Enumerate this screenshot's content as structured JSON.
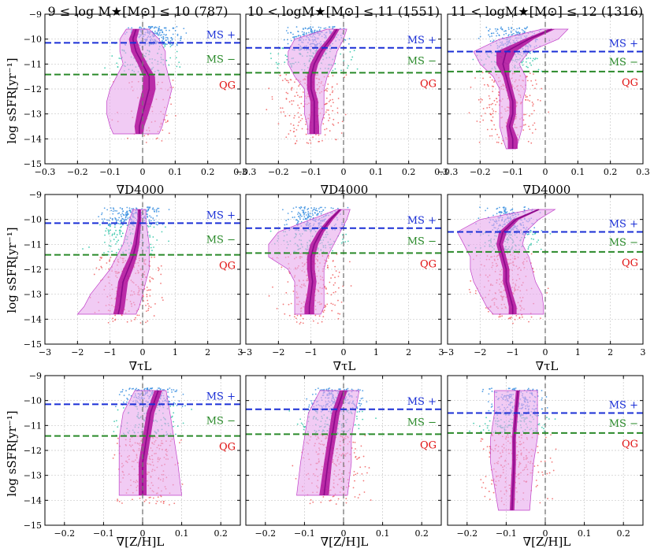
{
  "figure": {
    "column_titles": [
      "9 ≤ log M★[M⊙] ≤ 10 (787)",
      "10 < logM★[M⊙] ≤ 11 (1551)",
      "11 < logM★[M⊙] ≤ 12 (1316)"
    ],
    "ylabel": "log sSFR[yr⁻¹]",
    "row_xlabels": [
      "∇D4000",
      "∇τL",
      "∇[Z/H]L"
    ],
    "region_labels": {
      "ms_plus": "MS +",
      "ms_minus": "MS −",
      "qg": "QG"
    },
    "colors": {
      "ms_plus_line": "#1a2fd6",
      "ms_minus_line": "#2a8a2a",
      "qg_text": "#e01010",
      "ms_plus_points": "#3a8fe0",
      "ms_minus_points": "#2ec4a6",
      "qg_points": "#f06060",
      "band_outer": "#e8a8ec",
      "band_outer_edge": "#c040c8",
      "band_inner": "#b0109a",
      "median": "#8a0a8a"
    },
    "y_ticks": [
      -9,
      -10,
      -11,
      -12,
      -13,
      -14,
      -15
    ]
  },
  "chart_data": [
    {
      "type": "scatter",
      "row": 0,
      "col": 0,
      "xlim": [
        -0.3,
        0.3
      ],
      "ylim": [
        -15,
        -9
      ],
      "xticks": [
        -0.3,
        -0.2,
        -0.1,
        0,
        0.1,
        0.2,
        0.3
      ],
      "ms_plus_y": -10.15,
      "ms_minus_y": -11.42,
      "median_y": [
        -9.6,
        -10.0,
        -10.5,
        -11.0,
        -11.5,
        -12.0,
        -12.5,
        -13.0,
        -13.5,
        -13.8
      ],
      "median_x": [
        -0.02,
        -0.03,
        -0.02,
        0.0,
        0.02,
        0.02,
        0.01,
        0.0,
        -0.01,
        -0.01
      ],
      "inner_halfwidth": [
        0.01,
        0.012,
        0.015,
        0.015,
        0.018,
        0.02,
        0.02,
        0.018,
        0.015,
        0.012
      ],
      "outer_lo": [
        -0.05,
        -0.07,
        -0.07,
        -0.06,
        -0.08,
        -0.1,
        -0.11,
        -0.11,
        -0.1,
        -0.09
      ],
      "outer_hi": [
        0.02,
        0.05,
        0.07,
        0.07,
        0.08,
        0.09,
        0.08,
        0.07,
        0.06,
        0.05
      ]
    },
    {
      "type": "scatter",
      "row": 0,
      "col": 1,
      "xlim": [
        -0.3,
        0.3
      ],
      "ylim": [
        -15,
        -9
      ],
      "xticks": [
        -0.3,
        -0.2,
        -0.1,
        0,
        0.1,
        0.2,
        0.3
      ],
      "ms_plus_y": -10.35,
      "ms_minus_y": -11.35,
      "median_y": [
        -9.6,
        -10.0,
        -10.5,
        -11.0,
        -11.5,
        -12.0,
        -12.5,
        -13.0,
        -13.5,
        -13.8
      ],
      "median_x": [
        -0.02,
        -0.04,
        -0.07,
        -0.09,
        -0.1,
        -0.1,
        -0.09,
        -0.09,
        -0.09,
        -0.09
      ],
      "inner_halfwidth": [
        0.008,
        0.01,
        0.012,
        0.012,
        0.012,
        0.012,
        0.012,
        0.012,
        0.015,
        0.015
      ],
      "outer_lo": [
        -0.05,
        -0.15,
        -0.17,
        -0.17,
        -0.15,
        -0.12,
        -0.12,
        -0.12,
        -0.11,
        -0.11
      ],
      "outer_hi": [
        0.01,
        0.0,
        -0.02,
        -0.03,
        -0.05,
        -0.06,
        -0.06,
        -0.06,
        -0.07,
        -0.07
      ]
    },
    {
      "type": "scatter",
      "row": 0,
      "col": 2,
      "xlim": [
        -0.3,
        0.3
      ],
      "ylim": [
        -15,
        -9
      ],
      "xticks": [
        -0.3,
        -0.2,
        -0.1,
        0,
        0.1,
        0.2,
        0.3
      ],
      "ms_plus_y": -10.5,
      "ms_minus_y": -11.3,
      "median_y": [
        -9.6,
        -10.0,
        -10.5,
        -11.0,
        -11.5,
        -12.0,
        -12.5,
        -13.0,
        -13.5,
        -14.0,
        -14.4
      ],
      "median_x": [
        0.02,
        -0.05,
        -0.12,
        -0.13,
        -0.12,
        -0.11,
        -0.1,
        -0.1,
        -0.11,
        -0.1,
        -0.1
      ],
      "inner_halfwidth": [
        0.01,
        0.015,
        0.03,
        0.02,
        0.01,
        0.01,
        0.01,
        0.01,
        0.01,
        0.015,
        0.015
      ],
      "outer_lo": [
        -0.01,
        -0.14,
        -0.22,
        -0.2,
        -0.16,
        -0.14,
        -0.14,
        -0.14,
        -0.14,
        -0.13,
        -0.12
      ],
      "outer_hi": [
        0.07,
        0.04,
        -0.05,
        -0.08,
        -0.06,
        -0.06,
        -0.07,
        -0.07,
        -0.07,
        -0.08,
        -0.09
      ]
    },
    {
      "type": "scatter",
      "row": 1,
      "col": 0,
      "xlim": [
        -3,
        3
      ],
      "ylim": [
        -15,
        -9
      ],
      "xticks": [
        -3,
        -2,
        -1,
        0,
        1,
        2,
        3
      ],
      "ms_plus_y": -10.15,
      "ms_minus_y": -11.42,
      "median_y": [
        -9.6,
        -10.0,
        -10.5,
        -11.0,
        -11.5,
        -12.0,
        -12.5,
        -13.0,
        -13.5,
        -13.8
      ],
      "median_x": [
        -0.1,
        -0.1,
        -0.15,
        -0.2,
        -0.3,
        -0.45,
        -0.6,
        -0.65,
        -0.7,
        -0.75
      ],
      "inner_halfwidth": [
        0.05,
        0.06,
        0.08,
        0.1,
        0.12,
        0.15,
        0.15,
        0.15,
        0.15,
        0.15
      ],
      "outer_lo": [
        -0.3,
        -0.4,
        -0.5,
        -0.6,
        -0.8,
        -1.0,
        -1.3,
        -1.6,
        -1.8,
        -2.0
      ],
      "outer_hi": [
        0.1,
        0.1,
        0.15,
        0.2,
        0.2,
        0.2,
        0.1,
        0.0,
        -0.1,
        -0.2
      ]
    },
    {
      "type": "scatter",
      "row": 1,
      "col": 1,
      "xlim": [
        -3,
        3
      ],
      "ylim": [
        -15,
        -9
      ],
      "xticks": [
        -3,
        -2,
        -1,
        0,
        1,
        2,
        3
      ],
      "ms_plus_y": -10.35,
      "ms_minus_y": -11.35,
      "median_y": [
        -9.6,
        -10.0,
        -10.5,
        -11.0,
        -11.5,
        -12.0,
        -12.5,
        -13.0,
        -13.5,
        -13.8
      ],
      "median_x": [
        -0.1,
        -0.4,
        -0.7,
        -0.9,
        -1.0,
        -1.0,
        -0.95,
        -1.0,
        -1.05,
        -1.05
      ],
      "inner_halfwidth": [
        0.05,
        0.08,
        0.1,
        0.12,
        0.12,
        0.12,
        0.12,
        0.12,
        0.15,
        0.15
      ],
      "outer_lo": [
        -0.2,
        -1.0,
        -2.0,
        -2.3,
        -2.3,
        -1.7,
        -1.5,
        -1.5,
        -1.5,
        -1.5
      ],
      "outer_hi": [
        0.2,
        0.1,
        -0.1,
        -0.3,
        -0.5,
        -0.6,
        -0.6,
        -0.6,
        -0.6,
        -0.7
      ]
    },
    {
      "type": "scatter",
      "row": 1,
      "col": 2,
      "xlim": [
        -3,
        3
      ],
      "ylim": [
        -15,
        -9
      ],
      "xticks": [
        -3,
        -2,
        -1,
        0,
        1,
        2,
        3
      ],
      "ms_plus_y": -10.5,
      "ms_minus_y": -11.3,
      "median_y": [
        -9.6,
        -10.0,
        -10.5,
        -11.0,
        -11.5,
        -12.0,
        -12.5,
        -13.0,
        -13.5,
        -13.8
      ],
      "median_x": [
        -0.2,
        -0.9,
        -1.3,
        -1.4,
        -1.3,
        -1.2,
        -1.2,
        -1.1,
        -1.0,
        -1.0
      ],
      "inner_halfwidth": [
        0.05,
        0.1,
        0.12,
        0.1,
        0.1,
        0.1,
        0.1,
        0.1,
        0.12,
        0.12
      ],
      "outer_lo": [
        -0.4,
        -2.0,
        -2.7,
        -2.5,
        -2.3,
        -2.3,
        -2.2,
        -2.0,
        -1.8,
        -1.6
      ],
      "outer_hi": [
        0.3,
        -0.2,
        -0.6,
        -0.7,
        -0.5,
        -0.4,
        -0.3,
        -0.1,
        -0.05,
        -0.05
      ]
    },
    {
      "type": "scatter",
      "row": 2,
      "col": 0,
      "xlim": [
        -0.25,
        0.25
      ],
      "ylim": [
        -15,
        -9
      ],
      "xticks": [
        -0.2,
        -0.1,
        0,
        0.1,
        0.2
      ],
      "ms_plus_y": -10.15,
      "ms_minus_y": -11.42,
      "median_y": [
        -9.6,
        -10.5,
        -11.5,
        -12.5,
        -13.8
      ],
      "median_x": [
        0.04,
        0.02,
        0.01,
        0.0,
        0.0
      ],
      "inner_halfwidth": [
        0.01,
        0.01,
        0.01,
        0.01,
        0.01
      ],
      "outer_lo": [
        -0.02,
        -0.05,
        -0.06,
        -0.06,
        -0.06
      ],
      "outer_hi": [
        0.06,
        0.07,
        0.08,
        0.09,
        0.1
      ]
    },
    {
      "type": "scatter",
      "row": 2,
      "col": 1,
      "xlim": [
        -0.25,
        0.25
      ],
      "ylim": [
        -15,
        -9
      ],
      "xticks": [
        -0.2,
        -0.1,
        0,
        0.1,
        0.2
      ],
      "ms_plus_y": -10.35,
      "ms_minus_y": -11.35,
      "median_y": [
        -9.6,
        -10.5,
        -11.5,
        -12.5,
        -13.8
      ],
      "median_x": [
        0.0,
        -0.02,
        -0.03,
        -0.04,
        -0.05
      ],
      "inner_halfwidth": [
        0.01,
        0.01,
        0.01,
        0.01,
        0.012
      ],
      "outer_lo": [
        -0.06,
        -0.09,
        -0.1,
        -0.11,
        -0.12
      ],
      "outer_hi": [
        0.04,
        0.03,
        0.02,
        0.02,
        0.01
      ]
    },
    {
      "type": "scatter",
      "row": 2,
      "col": 2,
      "xlim": [
        -0.25,
        0.25
      ],
      "ylim": [
        -15,
        -9
      ],
      "xticks": [
        -0.2,
        -0.1,
        0,
        0.1,
        0.2
      ],
      "ms_plus_y": -10.5,
      "ms_minus_y": -11.3,
      "median_y": [
        -9.6,
        -10.5,
        -11.5,
        -12.5,
        -14.4
      ],
      "median_x": [
        -0.07,
        -0.075,
        -0.08,
        -0.08,
        -0.085
      ],
      "inner_halfwidth": [
        0.005,
        0.005,
        0.005,
        0.005,
        0.006
      ],
      "outer_lo": [
        -0.13,
        -0.13,
        -0.14,
        -0.14,
        -0.12
      ],
      "outer_hi": [
        -0.02,
        -0.02,
        -0.02,
        -0.03,
        -0.04
      ]
    }
  ]
}
